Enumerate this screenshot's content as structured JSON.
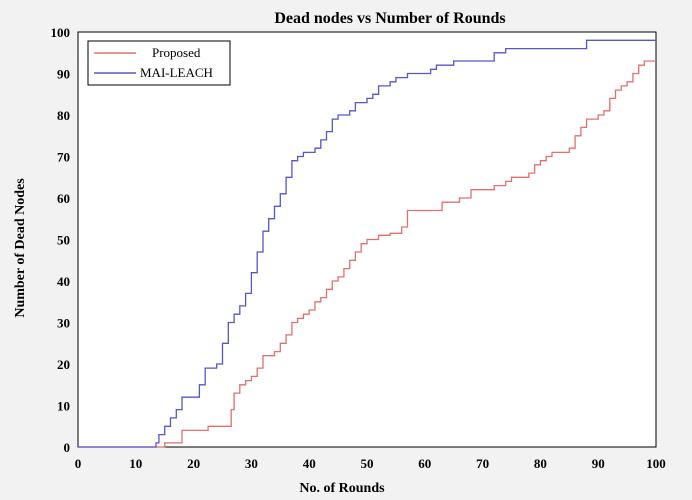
{
  "chart_data": {
    "type": "line",
    "title": "Dead nodes vs Number of Rounds",
    "xlabel": "No. of Rounds",
    "ylabel": "Number of Dead Nodes",
    "xlim": [
      0,
      100
    ],
    "ylim": [
      0,
      100
    ],
    "x_ticks": [
      0,
      10,
      20,
      30,
      40,
      50,
      60,
      70,
      80,
      90,
      100
    ],
    "y_ticks": [
      0,
      10,
      20,
      30,
      40,
      50,
      60,
      70,
      80,
      90,
      100
    ],
    "legend_position": "top-left",
    "grid": false,
    "series": [
      {
        "name": "Proposed",
        "color": "#e07070",
        "points": [
          [
            0,
            0
          ],
          [
            14,
            0
          ],
          [
            15,
            1
          ],
          [
            17,
            1
          ],
          [
            18,
            4
          ],
          [
            22,
            4
          ],
          [
            22.5,
            5
          ],
          [
            26,
            5
          ],
          [
            26.5,
            9
          ],
          [
            27,
            13
          ],
          [
            28,
            15
          ],
          [
            29,
            16
          ],
          [
            30,
            17
          ],
          [
            31,
            19
          ],
          [
            32,
            22
          ],
          [
            34,
            23
          ],
          [
            35,
            25
          ],
          [
            36,
            27
          ],
          [
            37,
            30
          ],
          [
            38,
            31
          ],
          [
            39,
            32
          ],
          [
            40,
            33
          ],
          [
            41,
            35
          ],
          [
            42,
            36
          ],
          [
            43,
            38
          ],
          [
            44,
            40
          ],
          [
            45,
            41
          ],
          [
            46,
            43
          ],
          [
            47,
            45
          ],
          [
            48,
            47
          ],
          [
            49,
            49
          ],
          [
            50,
            50
          ],
          [
            52,
            51
          ],
          [
            54,
            51.5
          ],
          [
            56,
            53
          ],
          [
            57,
            57
          ],
          [
            59,
            57
          ],
          [
            63,
            59
          ],
          [
            66,
            60
          ],
          [
            68,
            62
          ],
          [
            72,
            63
          ],
          [
            74,
            64
          ],
          [
            75,
            65
          ],
          [
            78,
            66
          ],
          [
            79,
            68
          ],
          [
            80,
            69
          ],
          [
            81,
            70
          ],
          [
            82,
            71
          ],
          [
            84,
            71
          ],
          [
            85,
            72
          ],
          [
            86,
            75
          ],
          [
            87,
            77
          ],
          [
            88,
            79
          ],
          [
            90,
            80
          ],
          [
            91,
            81
          ],
          [
            92,
            84
          ],
          [
            93,
            86
          ],
          [
            94,
            87
          ],
          [
            95,
            88
          ],
          [
            96,
            90
          ],
          [
            97,
            92
          ],
          [
            98,
            93
          ],
          [
            100,
            93
          ]
        ]
      },
      {
        "name": "MAI-LEACH",
        "color": "#5555cc",
        "points": [
          [
            0,
            0
          ],
          [
            13,
            0
          ],
          [
            13.5,
            1
          ],
          [
            14,
            3
          ],
          [
            15,
            5
          ],
          [
            16,
            7
          ],
          [
            17,
            9
          ],
          [
            18,
            12
          ],
          [
            20,
            12
          ],
          [
            21,
            15
          ],
          [
            22,
            19
          ],
          [
            24,
            20
          ],
          [
            25,
            25
          ],
          [
            26,
            30
          ],
          [
            27,
            32
          ],
          [
            28,
            34
          ],
          [
            29,
            37
          ],
          [
            30,
            42
          ],
          [
            31,
            47
          ],
          [
            32,
            52
          ],
          [
            33,
            55
          ],
          [
            34,
            58
          ],
          [
            35,
            61
          ],
          [
            36,
            65
          ],
          [
            37,
            69
          ],
          [
            38,
            70
          ],
          [
            39,
            71
          ],
          [
            41,
            72
          ],
          [
            42,
            74
          ],
          [
            43,
            76
          ],
          [
            44,
            79
          ],
          [
            45,
            80
          ],
          [
            47,
            81
          ],
          [
            48,
            83
          ],
          [
            50,
            84
          ],
          [
            51,
            85
          ],
          [
            52,
            87
          ],
          [
            54,
            88
          ],
          [
            55,
            89
          ],
          [
            57,
            90
          ],
          [
            61,
            91
          ],
          [
            62,
            92
          ],
          [
            65,
            93
          ],
          [
            72,
            95
          ],
          [
            74,
            96
          ],
          [
            88,
            98
          ],
          [
            100,
            98
          ]
        ]
      }
    ]
  }
}
